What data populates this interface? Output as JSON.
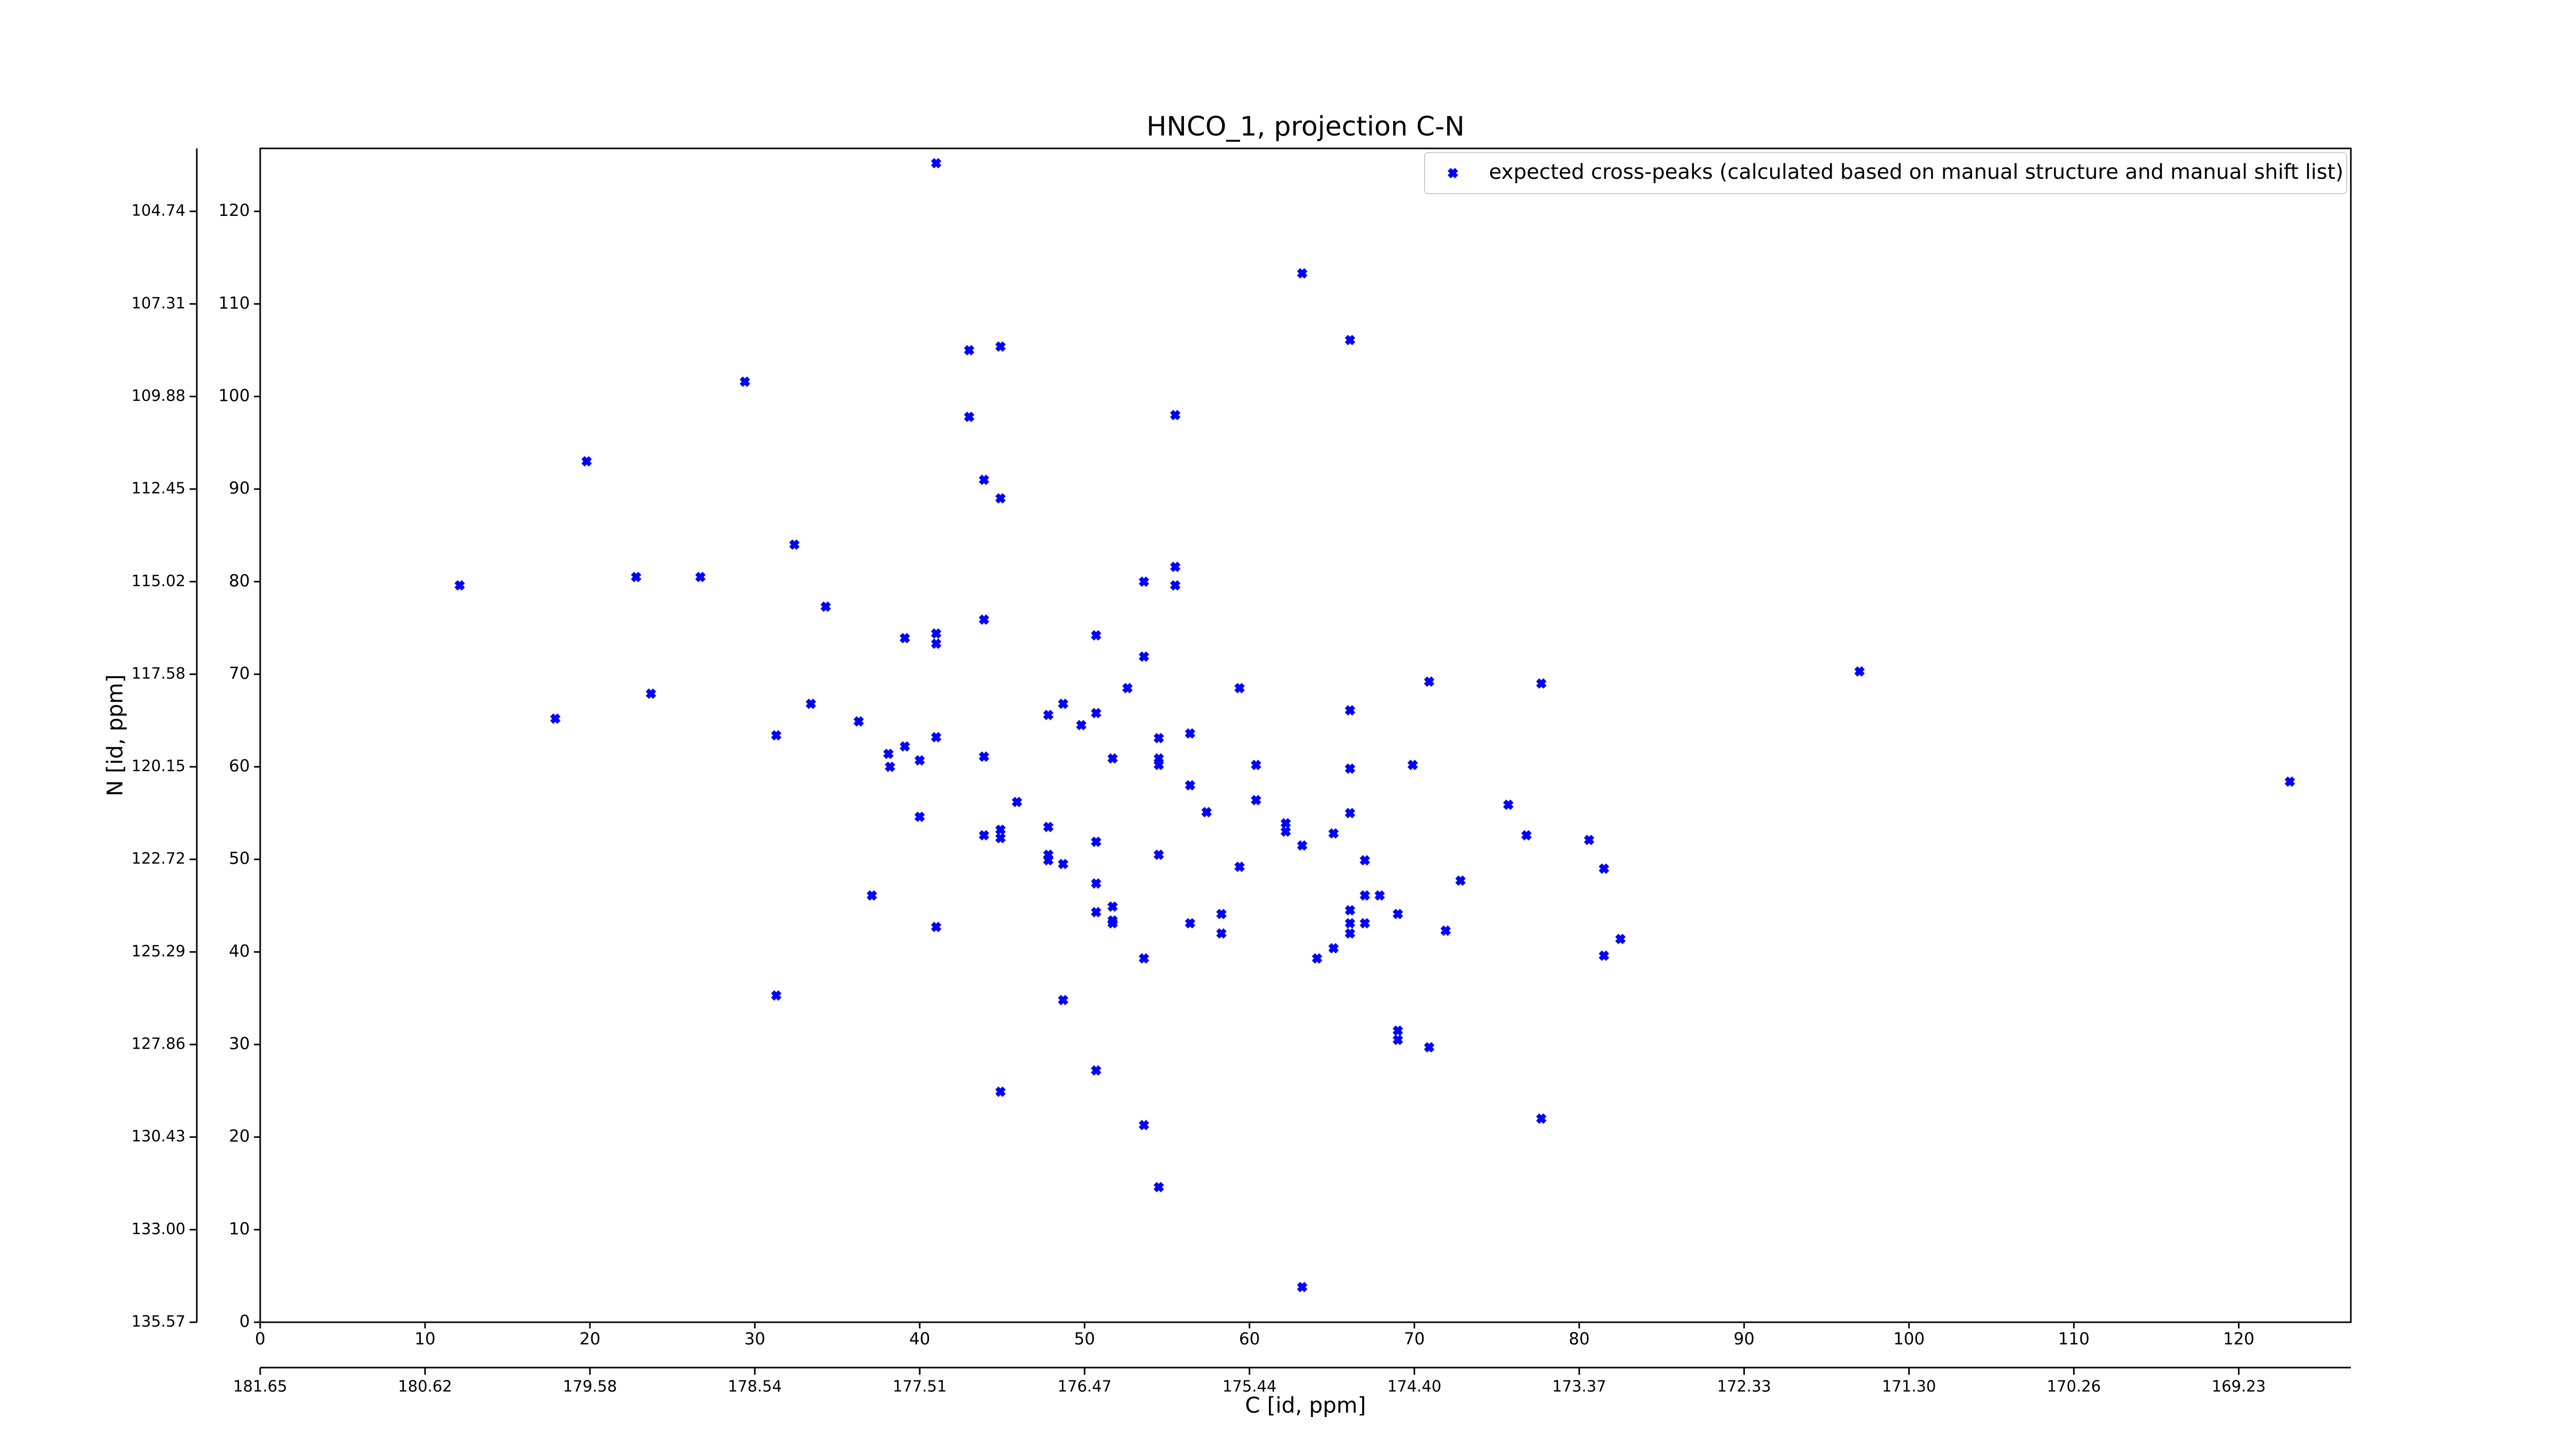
{
  "chart_data": {
    "type": "scatter",
    "title": "HNCO_1, projection C-N",
    "xlabel": "C [id, ppm]",
    "ylabel": "N [id, ppm]",
    "xlim": [
      0,
      126.8
    ],
    "ylim": [
      0,
      126.8
    ],
    "xticks": [
      0,
      10,
      20,
      30,
      40,
      50,
      60,
      70,
      80,
      90,
      100,
      110,
      120
    ],
    "yticks": [
      0,
      10,
      20,
      30,
      40,
      50,
      60,
      70,
      80,
      90,
      100,
      110,
      120
    ],
    "x2lim": [
      0,
      126.8
    ],
    "x2ticks": [
      {
        "value": 0,
        "label": "181.65"
      },
      {
        "value": 10,
        "label": "180.62"
      },
      {
        "value": 20,
        "label": "179.58"
      },
      {
        "value": 30,
        "label": "178.54"
      },
      {
        "value": 40,
        "label": "177.51"
      },
      {
        "value": 50,
        "label": "176.47"
      },
      {
        "value": 60,
        "label": "175.44"
      },
      {
        "value": 70,
        "label": "174.40"
      },
      {
        "value": 80,
        "label": "173.37"
      },
      {
        "value": 90,
        "label": "172.33"
      },
      {
        "value": 100,
        "label": "171.30"
      },
      {
        "value": 110,
        "label": "170.26"
      },
      {
        "value": 120,
        "label": "169.23"
      }
    ],
    "y2lim": [
      0,
      126.8
    ],
    "y2ticks": [
      {
        "value": 0,
        "label": "135.57"
      },
      {
        "value": 10,
        "label": "133.00"
      },
      {
        "value": 20,
        "label": "130.43"
      },
      {
        "value": 30,
        "label": "127.86"
      },
      {
        "value": 40,
        "label": "125.29"
      },
      {
        "value": 50,
        "label": "122.72"
      },
      {
        "value": 60,
        "label": "120.15"
      },
      {
        "value": 70,
        "label": "117.58"
      },
      {
        "value": 80,
        "label": "115.02"
      },
      {
        "value": 90,
        "label": "112.45"
      },
      {
        "value": 100,
        "label": "109.88"
      },
      {
        "value": 110,
        "label": "107.31"
      },
      {
        "value": 120,
        "label": "104.74"
      }
    ],
    "legend": "upper right",
    "series": [
      {
        "name": "expected cross-peaks (calculated based on manual structure and manual shift list)",
        "color": "#0000ff",
        "x": [
          41.0,
          63.2,
          66.1,
          43.0,
          44.9,
          29.4,
          43.0,
          55.5,
          19.8,
          43.9,
          44.9,
          32.4,
          22.8,
          26.7,
          12.1,
          55.5,
          53.6,
          55.5,
          34.3,
          43.9,
          39.1,
          41.0,
          41.0,
          50.7,
          53.6,
          97.0,
          59.4,
          70.9,
          77.7,
          23.7,
          52.6,
          33.4,
          48.7,
          66.1,
          17.9,
          50.7,
          47.8,
          36.3,
          49.8,
          31.3,
          41.0,
          54.5,
          39.1,
          56.4,
          38.1,
          43.9,
          40.0,
          51.7,
          54.5,
          54.5,
          60.4,
          69.9,
          38.2,
          66.1,
          123.1,
          56.4,
          45.9,
          60.4,
          75.7,
          57.4,
          40.0,
          66.1,
          62.2,
          47.8,
          44.9,
          43.9,
          44.9,
          65.1,
          76.8,
          62.2,
          80.6,
          50.7,
          63.2,
          47.8,
          47.8,
          48.7,
          54.5,
          67.0,
          59.4,
          81.5,
          50.7,
          72.8,
          37.1,
          67.0,
          67.9,
          51.7,
          66.1,
          50.7,
          58.3,
          69.0,
          51.7,
          51.7,
          56.4,
          66.1,
          67.0,
          41.0,
          71.9,
          58.3,
          66.1,
          82.5,
          65.1,
          81.5,
          64.1,
          53.6,
          31.3,
          48.7,
          69.0,
          69.0,
          70.9,
          50.7,
          44.9,
          77.7,
          53.6,
          54.5,
          63.2
        ],
        "y": [
          125.2,
          113.3,
          106.1,
          105.0,
          105.4,
          101.6,
          97.8,
          98.0,
          93.0,
          91.0,
          89.0,
          84.0,
          80.5,
          80.5,
          79.6,
          81.6,
          80.0,
          79.6,
          77.3,
          75.9,
          73.9,
          74.4,
          73.3,
          74.2,
          71.9,
          70.3,
          68.5,
          69.2,
          69.0,
          67.9,
          68.5,
          66.8,
          66.8,
          66.1,
          65.2,
          65.8,
          65.6,
          64.9,
          64.5,
          63.4,
          63.2,
          63.1,
          62.2,
          63.6,
          61.4,
          61.1,
          60.7,
          60.9,
          60.9,
          60.2,
          60.2,
          60.2,
          60.0,
          59.8,
          58.4,
          58.0,
          56.2,
          56.4,
          55.9,
          55.1,
          54.6,
          55.0,
          53.9,
          53.5,
          53.2,
          52.6,
          52.3,
          52.8,
          52.6,
          53.0,
          52.1,
          51.9,
          51.5,
          50.5,
          49.9,
          49.5,
          50.5,
          49.9,
          49.2,
          49.0,
          47.4,
          47.7,
          46.1,
          46.1,
          46.1,
          44.9,
          44.5,
          44.3,
          44.1,
          44.1,
          43.4,
          43.1,
          43.1,
          43.1,
          43.1,
          42.7,
          42.3,
          42.0,
          42.0,
          41.4,
          40.4,
          39.6,
          39.3,
          39.3,
          35.3,
          34.8,
          31.5,
          30.5,
          29.7,
          27.2,
          24.9,
          22.0,
          21.3,
          14.6,
          3.8
        ]
      }
    ]
  }
}
